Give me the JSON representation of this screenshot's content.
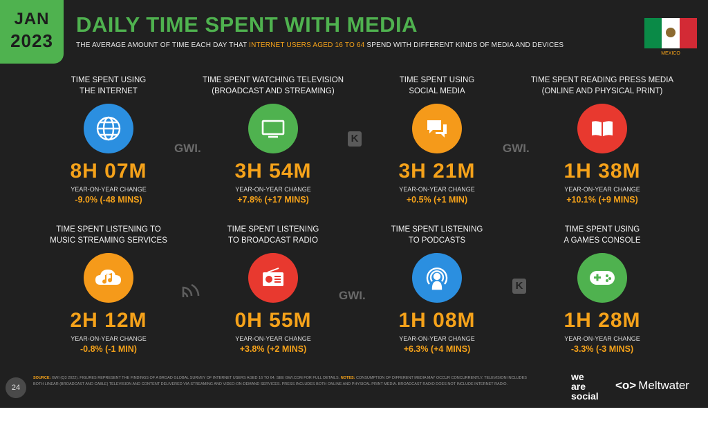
{
  "header": {
    "month": "JAN",
    "year": "2023",
    "title": "DAILY TIME SPENT WITH MEDIA",
    "subtitle_pre": "THE AVERAGE AMOUNT OF TIME EACH DAY THAT ",
    "subtitle_highlight": "INTERNET USERS AGED 16 TO 64",
    "subtitle_post": " SPEND WITH DIFFERENT KINDS OF MEDIA AND DEVICES",
    "country": "MEXICO"
  },
  "yoy_label": "YEAR-ON-YEAR CHANGE",
  "cards": [
    {
      "label1": "TIME SPENT USING",
      "label2": "THE INTERNET",
      "value": "8H 07M",
      "change": "-9.0% (-48 MINS)",
      "icon": "globe-icon",
      "color": "#2b8fe0"
    },
    {
      "label1": "TIME SPENT WATCHING TELEVISION",
      "label2": "(BROADCAST AND STREAMING)",
      "value": "3H 54M",
      "change": "+7.8% (+17 MINS)",
      "icon": "tv-icon",
      "color": "#4fb24f"
    },
    {
      "label1": "TIME SPENT USING",
      "label2": "SOCIAL MEDIA",
      "value": "3H 21M",
      "change": "+0.5% (+1 MIN)",
      "icon": "chat-bubbles-icon",
      "color": "#f59a1a"
    },
    {
      "label1": "TIME SPENT READING PRESS MEDIA",
      "label2": "(ONLINE AND PHYSICAL PRINT)",
      "value": "1H 38M",
      "change": "+10.1% (+9 MINS)",
      "icon": "book-icon",
      "color": "#e8392f"
    },
    {
      "label1": "TIME SPENT LISTENING TO",
      "label2": "MUSIC STREAMING SERVICES",
      "value": "2H 12M",
      "change": "-0.8% (-1 MIN)",
      "icon": "music-cloud-icon",
      "color": "#f59a1a"
    },
    {
      "label1": "TIME SPENT LISTENING",
      "label2": "TO BROADCAST RADIO",
      "value": "0H 55M",
      "change": "+3.8% (+2 MINS)",
      "icon": "radio-icon",
      "color": "#e8392f"
    },
    {
      "label1": "TIME SPENT LISTENING",
      "label2": "TO PODCASTS",
      "value": "1H 08M",
      "change": "+6.3% (+4 MINS)",
      "icon": "podcast-icon",
      "color": "#2b8fe0"
    },
    {
      "label1": "TIME SPENT USING",
      "label2": "A GAMES CONSOLE",
      "value": "1H 28M",
      "change": "-3.3% (-3 MINS)",
      "icon": "gamepad-icon",
      "color": "#4fb24f"
    }
  ],
  "watermarks": {
    "gwi": "GWI.",
    "k": "K"
  },
  "footer": {
    "page": "24",
    "source_key": "SOURCE:",
    "source_text": " GWI (Q3 2022). FIGURES REPRESENT THE FINDINGS OF A BROAD GLOBAL SURVEY OF INTERNET USERS AGED 16 TO 64. SEE GWI.COM FOR FULL DETAILS. ",
    "notes_key": "NOTES:",
    "notes_text": " CONSUMPTION OF DIFFERENT MEDIA MAY OCCUR CONCURRENTLY. TELEVISION INCLUDES BOTH LINEAR (BROADCAST AND CABLE) TELEVISION AND CONTENT DELIVERED VIA STREAMING AND VIDEO-ON-DEMAND SERVICES. PRESS INCLUDES BOTH ONLINE AND PHYSICAL PRINT MEDIA. BROADCAST RADIO DOES NOT INCLUDE INTERNET RADIO.",
    "brand1": "we",
    "brand2": "are",
    "brand3": "social",
    "meltwater": "Meltwater"
  }
}
